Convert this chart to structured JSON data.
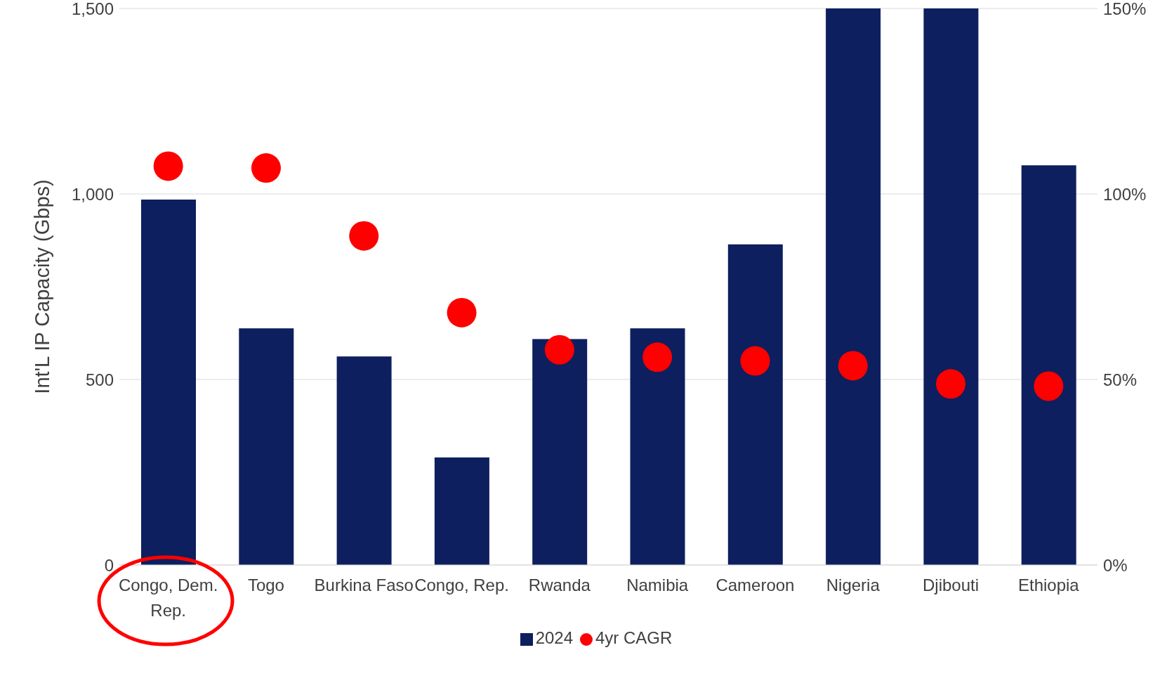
{
  "chart_data": {
    "type": "bar",
    "categories": [
      "Congo, Dem. Rep.",
      "Togo",
      "Burkina Faso",
      "Congo, Rep.",
      "Rwanda",
      "Namibia",
      "Cameroon",
      "Nigeria",
      "Djibouti",
      "Ethiopia"
    ],
    "series": [
      {
        "name": "2024",
        "color": "#0d1f5e",
        "values": [
          985,
          638,
          562,
          290,
          609,
          638,
          864,
          1500,
          1500,
          1077
        ]
      },
      {
        "name": "4yr CAGR",
        "type": "scatter",
        "axis": "y2",
        "color": "#ff0000",
        "values": [
          107.5,
          107,
          88.7,
          68,
          58,
          56,
          55,
          53.7,
          48.8,
          48.2
        ]
      }
    ],
    "ylabel": "Int'L IP Capacity (Gbps)",
    "ylim": [
      0,
      1500
    ],
    "yticks": [
      0,
      {
        "value": 500,
        "label": "500"
      },
      {
        "value": 1000,
        "label": "1,000"
      },
      {
        "value": 1500,
        "label": "1,500"
      }
    ],
    "y2lim": [
      0,
      150
    ],
    "y2ticks": [
      {
        "value": 0,
        "label": "0%"
      },
      {
        "value": 50,
        "label": "50%"
      },
      {
        "value": 100,
        "label": "100%"
      },
      {
        "value": 150,
        "label": "150%"
      }
    ],
    "grid": "y",
    "legend": "bottom",
    "marker": "circle"
  }
}
